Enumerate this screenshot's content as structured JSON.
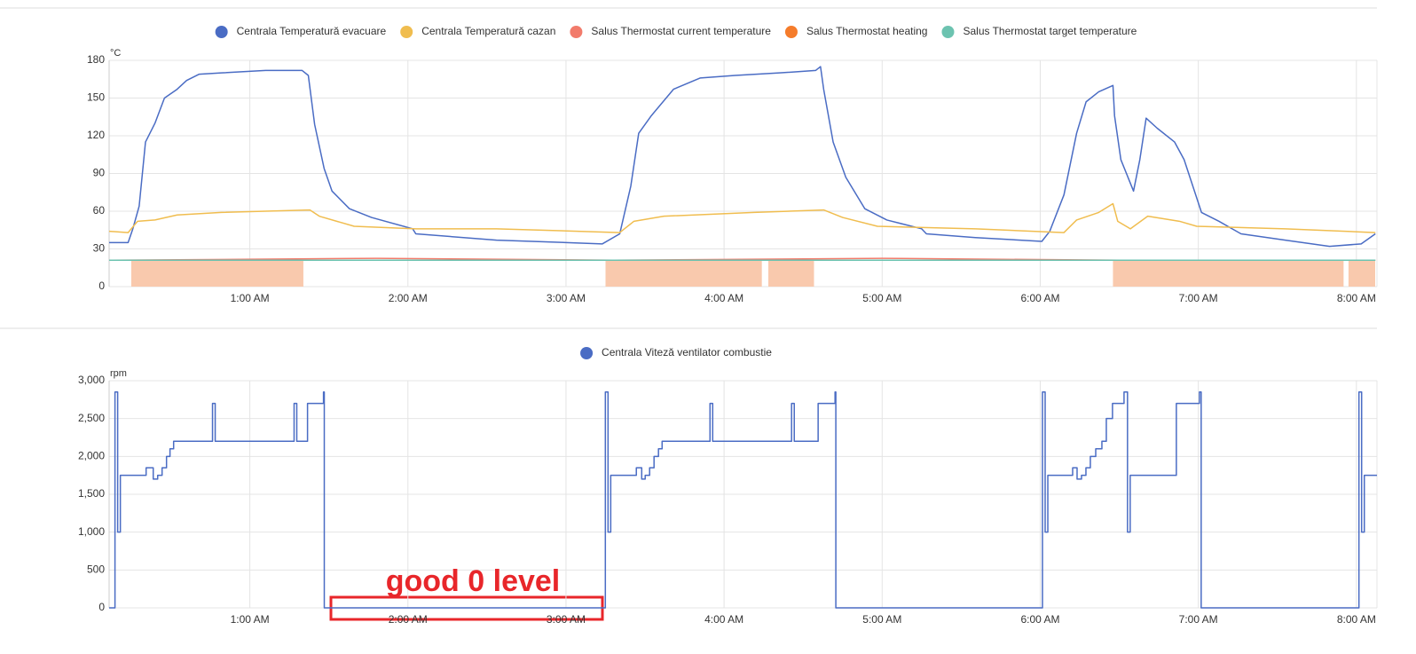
{
  "chart_data": [
    {
      "type": "line",
      "unit": "°C",
      "xlim": [
        0.11,
        8.13
      ],
      "xticks": [
        {
          "value": 1,
          "label": "1:00 AM"
        },
        {
          "value": 2,
          "label": "2:00 AM"
        },
        {
          "value": 3,
          "label": "3:00 AM"
        },
        {
          "value": 4,
          "label": "4:00 AM"
        },
        {
          "value": 5,
          "label": "5:00 AM"
        },
        {
          "value": 6,
          "label": "6:00 AM"
        },
        {
          "value": 7,
          "label": "7:00 AM"
        },
        {
          "value": 8,
          "label": "8:00 AM"
        }
      ],
      "ylim": [
        0,
        180
      ],
      "yticks": [
        0,
        30,
        60,
        90,
        120,
        150,
        180
      ],
      "grid": true,
      "series": [
        {
          "name": "Centrala Temperatură evacuare",
          "color": "#4a6cc4",
          "x": [
            0.11,
            0.23,
            0.26,
            0.3,
            0.34,
            0.4,
            0.46,
            0.54,
            0.6,
            0.68,
            0.82,
            1.1,
            1.33,
            1.37,
            1.41,
            1.47,
            1.52,
            1.63,
            1.77,
            2.03,
            2.05,
            2.56,
            3.23,
            3.34,
            3.41,
            3.46,
            3.54,
            3.68,
            3.85,
            4.07,
            4.35,
            4.58,
            4.61,
            4.63,
            4.69,
            4.77,
            4.89,
            5.03,
            5.25,
            5.28,
            5.59,
            6.01,
            6.06,
            6.15,
            6.23,
            6.29,
            6.37,
            6.46,
            6.47,
            6.51,
            6.59,
            6.63,
            6.67,
            6.74,
            6.85,
            6.91,
            7.02,
            7.13,
            7.27,
            7.55,
            7.83,
            8.03,
            8.12
          ],
          "values": [
            35,
            35,
            46,
            64,
            115,
            130,
            150,
            157,
            164,
            169,
            170,
            172,
            172,
            168,
            129,
            94,
            76,
            62,
            55,
            46,
            42,
            37,
            34,
            42,
            80,
            122,
            136,
            157,
            166,
            168,
            170,
            172,
            175,
            157,
            115,
            87,
            62,
            53,
            46,
            42,
            39,
            36,
            44,
            73,
            122,
            147,
            155,
            160,
            136,
            101,
            76,
            101,
            134,
            126,
            115,
            101,
            59,
            52,
            42,
            37,
            32,
            34,
            42
          ]
        },
        {
          "name": "Centrala Temperatură cazan",
          "color": "#f0bd4f",
          "x": [
            0.11,
            0.23,
            0.29,
            0.4,
            0.54,
            0.82,
            1.38,
            1.44,
            1.66,
            2.05,
            2.56,
            3.34,
            3.43,
            3.62,
            4.19,
            4.63,
            4.75,
            4.97,
            5.59,
            6.15,
            6.23,
            6.37,
            6.46,
            6.49,
            6.57,
            6.68,
            6.88,
            6.99,
            7.55,
            8.12
          ],
          "values": [
            44,
            43,
            52,
            53,
            57,
            59,
            61,
            56,
            48,
            46,
            46,
            43,
            52,
            56,
            59,
            61,
            55,
            48,
            46,
            43,
            53,
            59,
            66,
            52,
            46,
            56,
            52,
            48,
            46,
            43
          ]
        },
        {
          "name": "Salus Thermostat current temperature",
          "color": "#f27b6b",
          "x": [
            0.11,
            1.8,
            3.3,
            5.0,
            6.5,
            8.12
          ],
          "values": [
            21,
            22.5,
            21,
            22.5,
            21,
            21
          ]
        },
        {
          "name": "Salus Thermostat heating",
          "color": "#f57c2b",
          "fill": true,
          "x": [
            0.11,
            0.25,
            1.35,
            3.25,
            4.25,
            4.28,
            4.58,
            6.46,
            7.93,
            7.95
          ],
          "values": [
            0,
            21,
            0,
            21,
            0,
            21,
            0,
            21,
            0,
            21
          ]
        },
        {
          "name": "Salus Thermostat target temperature",
          "color": "#6cc3b0",
          "x": [
            0.11,
            8.12
          ],
          "values": [
            21,
            21
          ]
        }
      ]
    },
    {
      "type": "line",
      "step": true,
      "unit": "rpm",
      "xlim": [
        0.11,
        8.13
      ],
      "xticks": [
        {
          "value": 1,
          "label": "1:00 AM"
        },
        {
          "value": 2,
          "label": "2:00 AM"
        },
        {
          "value": 3,
          "label": "3:00 AM"
        },
        {
          "value": 4,
          "label": "4:00 AM"
        },
        {
          "value": 5,
          "label": "5:00 AM"
        },
        {
          "value": 6,
          "label": "6:00 AM"
        },
        {
          "value": 7,
          "label": "7:00 AM"
        },
        {
          "value": 8,
          "label": "8:00 AM"
        }
      ],
      "ylim": [
        0,
        3000
      ],
      "yticks": [
        0,
        500,
        {
          "value": 1000,
          "label": "1,000"
        },
        {
          "value": 1500,
          "label": "1,500"
        },
        {
          "value": 2000,
          "label": "2,000"
        },
        {
          "value": 2500,
          "label": "2,500"
        },
        {
          "value": 3000,
          "label": "3,000"
        }
      ],
      "grid": true,
      "annotation": "good 0 level",
      "series": [
        {
          "name": "Centrala Viteză ventilator combustie",
          "color": "#4a6cc4",
          "x": [
            0.11,
            0.147,
            0.164,
            0.181,
            0.344,
            0.389,
            0.417,
            0.445,
            0.473,
            0.495,
            0.518,
            0.764,
            0.781,
            1.28,
            1.297,
            1.365,
            1.466,
            1.471,
            3.249,
            3.266,
            3.283,
            3.445,
            3.479,
            3.501,
            3.529,
            3.557,
            3.585,
            3.608,
            3.911,
            3.928,
            4.427,
            4.444,
            4.595,
            4.702,
            4.707,
            6.014,
            6.031,
            6.048,
            6.205,
            6.233,
            6.261,
            6.289,
            6.317,
            6.351,
            6.39,
            6.418,
            6.457,
            6.53,
            6.552,
            6.569,
            6.861,
            7.007,
            7.018,
            8.016,
            8.033,
            8.05,
            8.13
          ],
          "values": [
            0,
            2850,
            1000,
            1750,
            1850,
            1700,
            1750,
            1850,
            2000,
            2100,
            2200,
            2700,
            2200,
            2700,
            2200,
            2700,
            2850,
            0,
            2850,
            1000,
            1750,
            1850,
            1700,
            1750,
            1850,
            2000,
            2100,
            2200,
            2700,
            2200,
            2700,
            2200,
            2700,
            2850,
            0,
            2850,
            1000,
            1750,
            1850,
            1700,
            1750,
            1850,
            2000,
            2100,
            2200,
            2500,
            2700,
            2850,
            1000,
            1750,
            2700,
            2850,
            0,
            2850,
            1000,
            1750,
            1750
          ]
        }
      ]
    }
  ]
}
